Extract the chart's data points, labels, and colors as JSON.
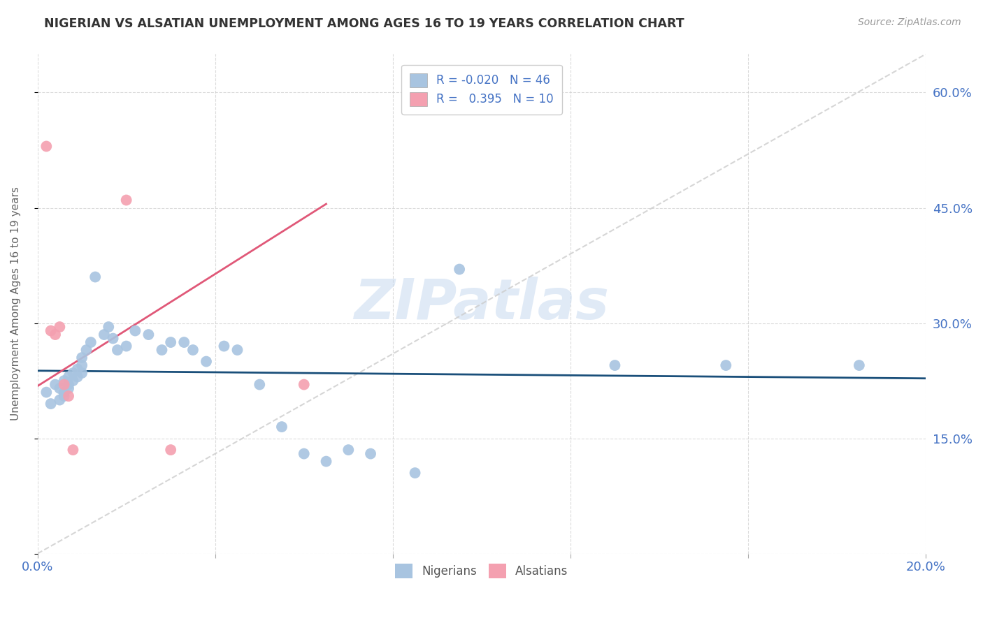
{
  "title": "NIGERIAN VS ALSATIAN UNEMPLOYMENT AMONG AGES 16 TO 19 YEARS CORRELATION CHART",
  "source": "Source: ZipAtlas.com",
  "ylabel": "Unemployment Among Ages 16 to 19 years",
  "xlim": [
    0.0,
    0.2
  ],
  "ylim": [
    0.0,
    0.65
  ],
  "xticks": [
    0.0,
    0.04,
    0.08,
    0.12,
    0.16,
    0.2
  ],
  "xtick_labels": [
    "0.0%",
    "",
    "",
    "",
    "",
    "20.0%"
  ],
  "yticks": [
    0.0,
    0.15,
    0.3,
    0.45,
    0.6
  ],
  "ytick_labels_right": [
    "",
    "15.0%",
    "30.0%",
    "45.0%",
    "60.0%"
  ],
  "watermark": "ZIPatlas",
  "legend_r_nigerian": "-0.020",
  "legend_n_nigerian": "46",
  "legend_r_alsatian": "0.395",
  "legend_n_alsatian": "10",
  "nigerian_color": "#a8c4e0",
  "alsatian_color": "#f4a0b0",
  "nigerian_line_color": "#1a4f7a",
  "alsatian_line_color": "#e05878",
  "diagonal_line_color": "#cccccc",
  "background_color": "#ffffff",
  "grid_color": "#cccccc",
  "title_color": "#333333",
  "axis_label_color": "#4472c4",
  "nigerian_x": [
    0.002,
    0.003,
    0.004,
    0.005,
    0.005,
    0.006,
    0.006,
    0.006,
    0.007,
    0.007,
    0.007,
    0.008,
    0.008,
    0.009,
    0.009,
    0.01,
    0.01,
    0.01,
    0.011,
    0.012,
    0.013,
    0.015,
    0.016,
    0.017,
    0.018,
    0.02,
    0.022,
    0.025,
    0.028,
    0.03,
    0.033,
    0.035,
    0.038,
    0.042,
    0.045,
    0.05,
    0.055,
    0.06,
    0.065,
    0.07,
    0.075,
    0.085,
    0.095,
    0.13,
    0.155,
    0.185
  ],
  "nigerian_y": [
    0.21,
    0.195,
    0.22,
    0.215,
    0.2,
    0.225,
    0.21,
    0.205,
    0.23,
    0.22,
    0.215,
    0.235,
    0.225,
    0.24,
    0.23,
    0.255,
    0.245,
    0.235,
    0.265,
    0.275,
    0.36,
    0.285,
    0.295,
    0.28,
    0.265,
    0.27,
    0.29,
    0.285,
    0.265,
    0.275,
    0.275,
    0.265,
    0.25,
    0.27,
    0.265,
    0.22,
    0.165,
    0.13,
    0.12,
    0.135,
    0.13,
    0.105,
    0.37,
    0.245,
    0.245,
    0.245
  ],
  "alsatian_x": [
    0.002,
    0.003,
    0.004,
    0.005,
    0.006,
    0.007,
    0.008,
    0.02,
    0.03,
    0.06
  ],
  "alsatian_y": [
    0.53,
    0.29,
    0.285,
    0.295,
    0.22,
    0.205,
    0.135,
    0.46,
    0.135,
    0.22
  ],
  "nig_line_x0": 0.0,
  "nig_line_x1": 0.2,
  "nig_line_y0": 0.238,
  "nig_line_y1": 0.228,
  "als_line_x0": 0.0,
  "als_line_x1": 0.065,
  "als_line_y0": 0.218,
  "als_line_y1": 0.455
}
